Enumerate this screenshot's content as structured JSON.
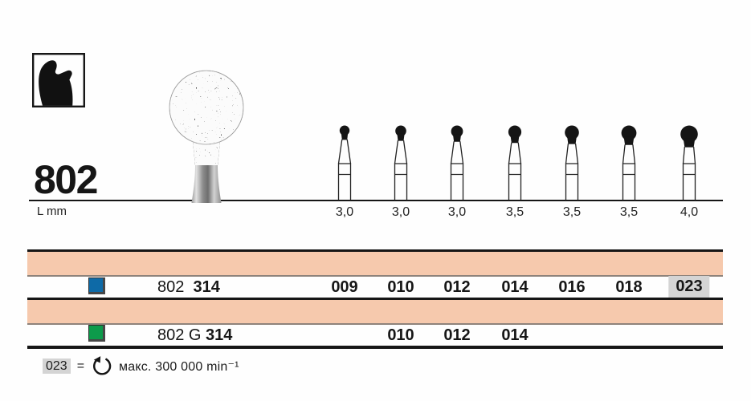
{
  "colors": {
    "band_pink": "#f6c9ad",
    "separator_gray": "#8e837b",
    "highlight_gray": "#d4d4d4",
    "rule_black": "#161616",
    "row1_square_blue": "#0e6aa7",
    "row2_square_green": "#0d9b4b"
  },
  "header": {
    "figure_number": "802",
    "length_label": "L mm"
  },
  "figures": {
    "lengths_mm": [
      "3,0",
      "3,0",
      "3,0",
      "3,5",
      "3,5",
      "3,5",
      "4,0"
    ]
  },
  "table": {
    "rows": [
      {
        "series_code": "802",
        "shank_code": "314",
        "sizes": [
          "009",
          "010",
          "012",
          "014",
          "016",
          "018",
          "023"
        ],
        "highlighted_size": "023"
      },
      {
        "series_code": "802 G",
        "shank_code": "314",
        "sizes": [
          "",
          "010",
          "012",
          "014",
          "",
          "",
          ""
        ],
        "highlighted_size": ""
      }
    ]
  },
  "legend": {
    "size_code": "023",
    "equals_sign": "=",
    "rotation_icon": "max-rotation-speed-icon",
    "text": "макс. 300 000 min⁻¹"
  }
}
